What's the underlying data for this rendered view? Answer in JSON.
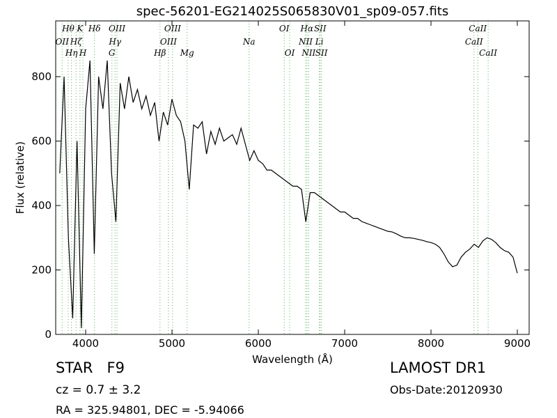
{
  "chart_data": {
    "type": "line",
    "title": "spec-56201-EG214025S065830V01_sp09-057.fits",
    "x_label": "Wavelength (Å)",
    "y_label": "Flux (relative)",
    "color": "#000000",
    "x": [
      3700,
      3750,
      3800,
      3850,
      3900,
      3950,
      4000,
      4050,
      4100,
      4150,
      4200,
      4250,
      4300,
      4350,
      4400,
      4450,
      4500,
      4550,
      4600,
      4650,
      4700,
      4750,
      4800,
      4850,
      4900,
      4950,
      5000,
      5050,
      5100,
      5150,
      5200,
      5250,
      5300,
      5350,
      5400,
      5450,
      5500,
      5550,
      5600,
      5650,
      5700,
      5750,
      5800,
      5850,
      5900,
      5950,
      6000,
      6050,
      6100,
      6150,
      6200,
      6250,
      6300,
      6350,
      6400,
      6450,
      6500,
      6550,
      6600,
      6650,
      6700,
      6750,
      6800,
      6850,
      6900,
      6950,
      7000,
      7050,
      7100,
      7150,
      7200,
      7250,
      7300,
      7350,
      7400,
      7450,
      7500,
      7550,
      7600,
      7650,
      7700,
      7750,
      7800,
      7850,
      7900,
      7950,
      8000,
      8050,
      8100,
      8150,
      8200,
      8250,
      8300,
      8350,
      8400,
      8450,
      8500,
      8550,
      8600,
      8650,
      8700,
      8750,
      8800,
      8850,
      8900,
      8950,
      9000
    ],
    "values": [
      500,
      800,
      300,
      50,
      600,
      20,
      700,
      850,
      250,
      800,
      700,
      850,
      500,
      350,
      780,
      700,
      800,
      720,
      760,
      700,
      740,
      680,
      720,
      600,
      690,
      650,
      730,
      680,
      660,
      600,
      450,
      650,
      640,
      660,
      560,
      630,
      590,
      640,
      600,
      610,
      620,
      590,
      640,
      590,
      540,
      570,
      540,
      530,
      510,
      510,
      500,
      490,
      480,
      470,
      460,
      460,
      450,
      350,
      440,
      440,
      430,
      420,
      410,
      400,
      390,
      380,
      380,
      370,
      360,
      360,
      350,
      345,
      340,
      335,
      330,
      325,
      320,
      318,
      312,
      305,
      300,
      300,
      298,
      295,
      292,
      288,
      285,
      280,
      270,
      250,
      225,
      210,
      215,
      240,
      255,
      265,
      280,
      270,
      290,
      300,
      295,
      285,
      270,
      260,
      255,
      240,
      190
    ],
    "xlim": [
      3653,
      9137
    ],
    "ylim": [
      0,
      973
    ],
    "xticks": [
      4000,
      5000,
      6000,
      7000,
      8000,
      9000
    ],
    "yticks": [
      0,
      200,
      400,
      600,
      800
    ],
    "annotation_color": "#55b155",
    "annotation_rows": [
      [
        {
          "label": "Hθ",
          "wavelength": 3798
        },
        {
          "label": "K",
          "wavelength": 3934
        },
        {
          "label": "Hδ",
          "wavelength": 4102
        },
        {
          "label": "OIII",
          "wavelength": 4363
        },
        {
          "label": "OIII",
          "wavelength": 5007
        },
        {
          "label": "OI",
          "wavelength": 6300
        },
        {
          "label": "Hα",
          "wavelength": 6563
        },
        {
          "label": "SII",
          "wavelength": 6716
        },
        {
          "label": "CaII",
          "wavelength": 8542
        }
      ],
      [
        {
          "label": "OII",
          "wavelength": 3727
        },
        {
          "label": "Hζ",
          "wavelength": 3889
        },
        {
          "label": "Hγ",
          "wavelength": 4340
        },
        {
          "label": "OIII",
          "wavelength": 4959
        },
        {
          "label": "Na",
          "wavelength": 5893
        },
        {
          "label": "NII",
          "wavelength": 6548
        },
        {
          "label": "Li",
          "wavelength": 6707
        },
        {
          "label": "CaII",
          "wavelength": 8498
        }
      ],
      [
        {
          "label": "Hη",
          "wavelength": 3835
        },
        {
          "label": "H",
          "wavelength": 3968
        },
        {
          "label": "G",
          "wavelength": 4304
        },
        {
          "label": "Hβ",
          "wavelength": 4861
        },
        {
          "label": "Mg",
          "wavelength": 5175
        },
        {
          "label": "OI",
          "wavelength": 6363
        },
        {
          "label": "NII",
          "wavelength": 6583
        },
        {
          "label": "SII",
          "wavelength": 6731
        },
        {
          "label": "CaII",
          "wavelength": 8662
        }
      ]
    ]
  },
  "info": {
    "object": "STAR   F9",
    "survey": "LAMOST DR1",
    "redshift": "cz = 0.7 ± 3.2",
    "obs_date": "Obs-Date:20120930",
    "coords": "RA = 325.94801, DEC = -5.94066"
  }
}
